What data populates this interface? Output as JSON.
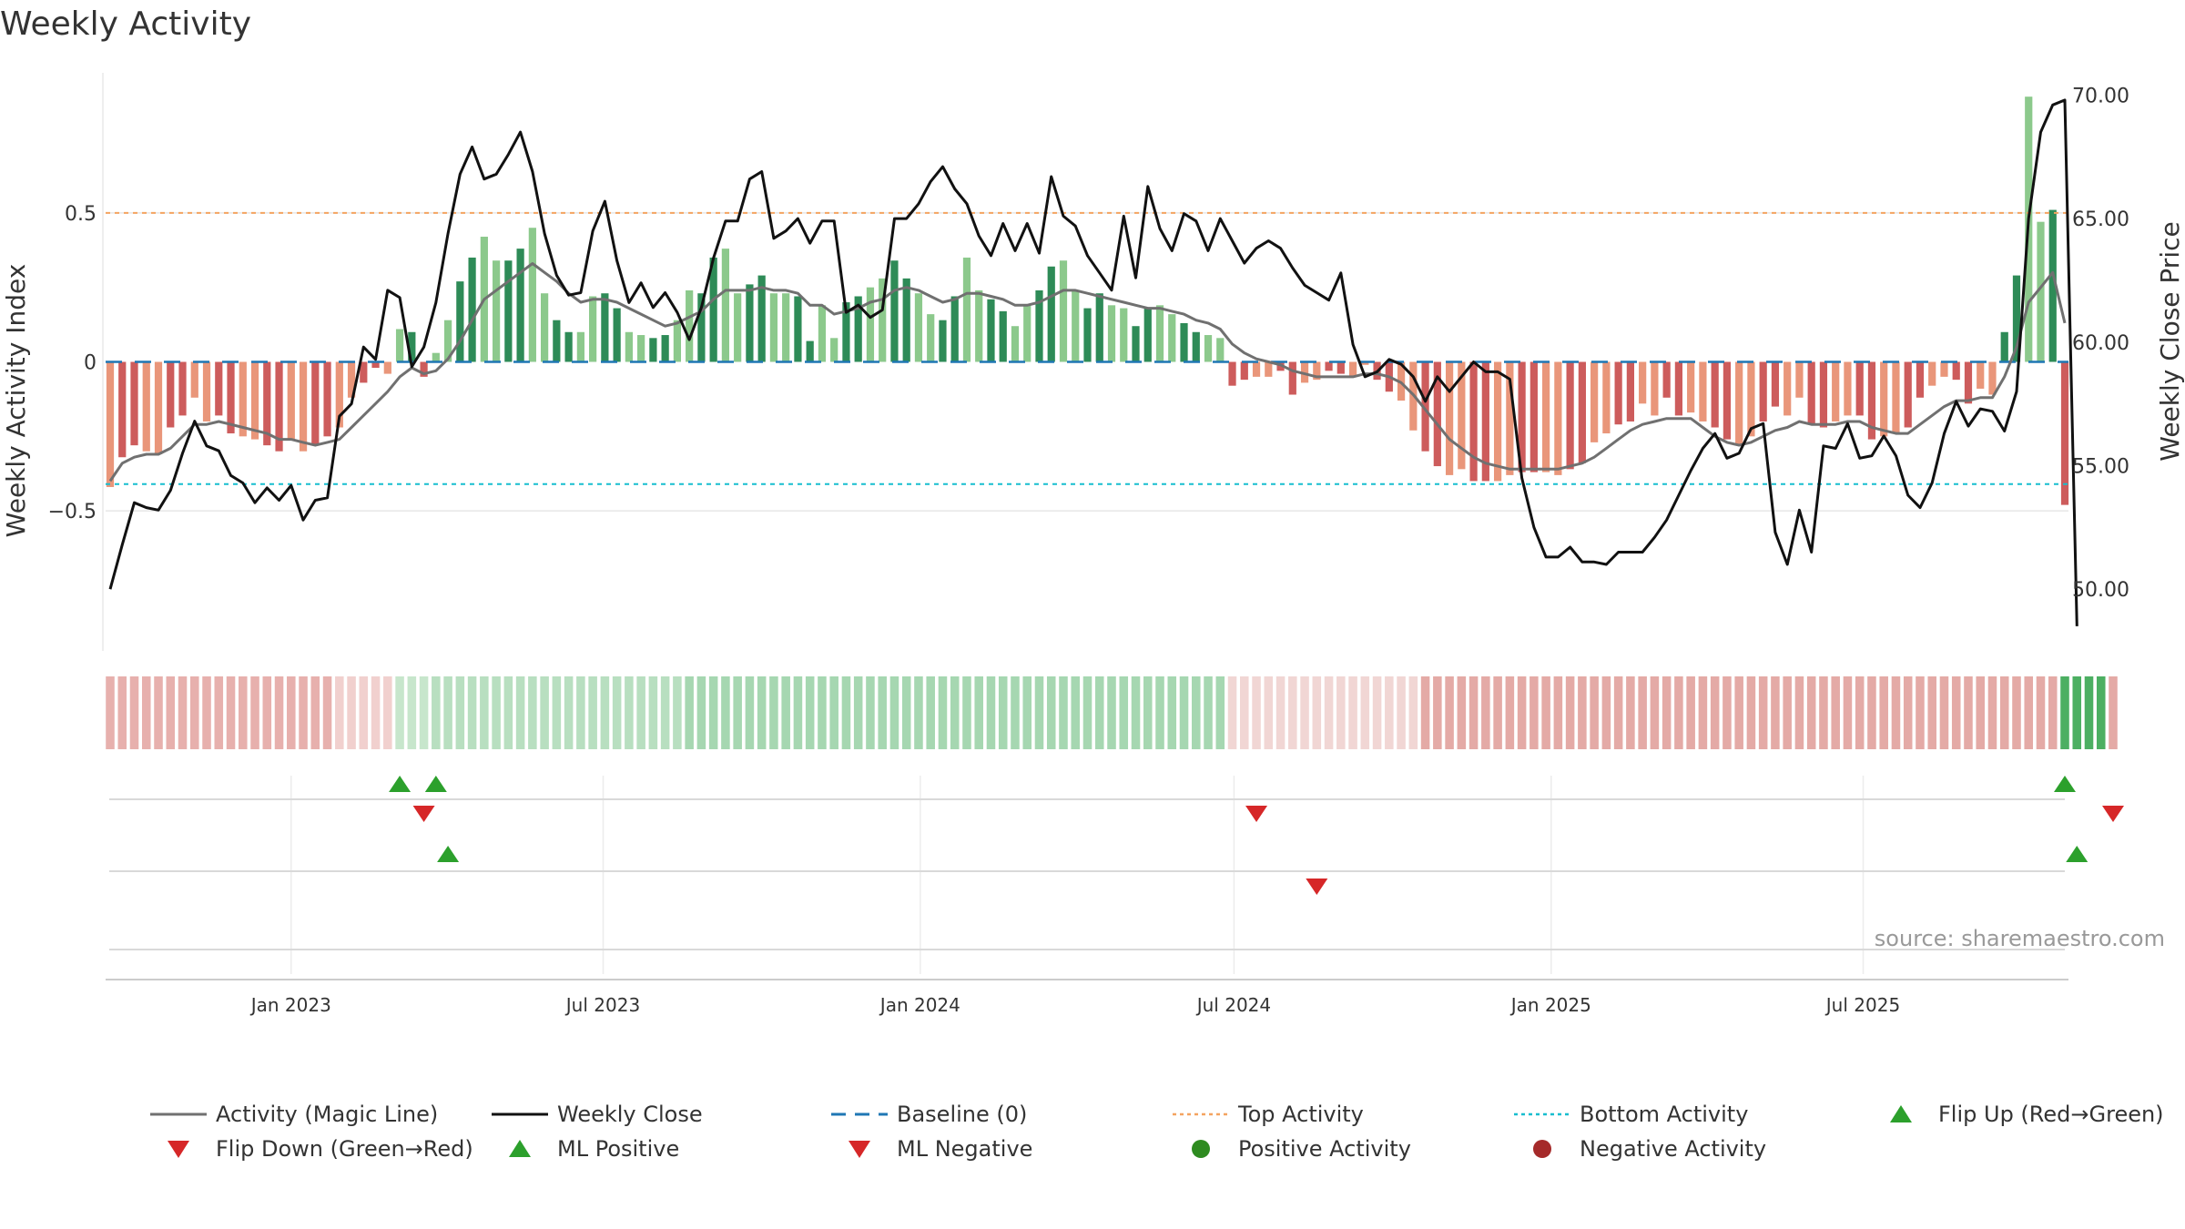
{
  "chart_data": {
    "type": "bar",
    "title": "Weekly Activity",
    "ylabel_left": "Weekly Activity Index",
    "ylabel_right": "Weekly Close Price",
    "source": "source: sharemaestro.com",
    "x_start": "2022-09-18",
    "x_step_days": 7,
    "left_axis": {
      "range": [
        -0.97,
        0.97
      ],
      "ticks": [
        -0.5,
        0,
        0.5
      ],
      "tick_labels": [
        "−0.5",
        "0",
        "0.5"
      ]
    },
    "right_axis": {
      "range": [
        47.5,
        70.9
      ],
      "ticks": [
        50,
        55,
        60,
        65,
        70
      ],
      "tick_labels": [
        "50.00",
        "55.00",
        "60.00",
        "65.00",
        "70.00"
      ]
    },
    "x_ticks": [
      {
        "date": "2023-01-01",
        "label": "Jan 2023"
      },
      {
        "date": "2023-07-01",
        "label": "Jul 2023"
      },
      {
        "date": "2024-01-01",
        "label": "Jan 2024"
      },
      {
        "date": "2024-07-01",
        "label": "Jul 2024"
      },
      {
        "date": "2025-01-01",
        "label": "Jan 2025"
      },
      {
        "date": "2025-07-01",
        "label": "Jul 2025"
      }
    ],
    "top_activity": 0.5,
    "bottom_activity": -0.41,
    "activity": [
      -0.42,
      -0.32,
      -0.28,
      -0.3,
      -0.31,
      -0.22,
      -0.18,
      -0.12,
      -0.2,
      -0.18,
      -0.24,
      -0.25,
      -0.26,
      -0.28,
      -0.3,
      -0.26,
      -0.3,
      -0.28,
      -0.25,
      -0.22,
      -0.12,
      -0.07,
      -0.02,
      -0.04,
      0.11,
      0.1,
      -0.05,
      0.03,
      0.14,
      0.27,
      0.35,
      0.42,
      0.34,
      0.34,
      0.38,
      0.45,
      0.23,
      0.14,
      0.1,
      0.1,
      0.22,
      0.23,
      0.18,
      0.1,
      0.09,
      0.08,
      0.09,
      0.14,
      0.24,
      0.23,
      0.35,
      0.38,
      0.23,
      0.26,
      0.29,
      0.23,
      0.23,
      0.22,
      0.07,
      0.19,
      0.08,
      0.2,
      0.22,
      0.25,
      0.28,
      0.34,
      0.28,
      0.23,
      0.16,
      0.14,
      0.22,
      0.35,
      0.24,
      0.21,
      0.17,
      0.12,
      0.19,
      0.24,
      0.32,
      0.34,
      0.24,
      0.18,
      0.23,
      0.19,
      0.18,
      0.12,
      0.18,
      0.19,
      0.16,
      0.13,
      0.1,
      0.09,
      0.08,
      -0.08,
      -0.06,
      -0.05,
      -0.05,
      -0.03,
      -0.11,
      -0.07,
      -0.06,
      -0.03,
      -0.04,
      -0.05,
      -0.01,
      -0.06,
      -0.1,
      -0.13,
      -0.23,
      -0.3,
      -0.35,
      -0.38,
      -0.36,
      -0.4,
      -0.4,
      -0.4,
      -0.38,
      -0.37,
      -0.37,
      -0.37,
      -0.38,
      -0.36,
      -0.34,
      -0.27,
      -0.24,
      -0.21,
      -0.2,
      -0.14,
      -0.18,
      -0.12,
      -0.18,
      -0.17,
      -0.2,
      -0.22,
      -0.26,
      -0.28,
      -0.25,
      -0.2,
      -0.15,
      -0.18,
      -0.12,
      -0.21,
      -0.22,
      -0.2,
      -0.18,
      -0.18,
      -0.26,
      -0.25,
      -0.24,
      -0.22,
      -0.12,
      -0.08,
      -0.05,
      -0.06,
      -0.14,
      -0.09,
      -0.11,
      0.1,
      0.29,
      0.89,
      0.47,
      0.51,
      -0.48
    ],
    "magic_line": [
      -0.4,
      -0.34,
      -0.32,
      -0.31,
      -0.31,
      -0.29,
      -0.25,
      -0.21,
      -0.21,
      -0.2,
      -0.21,
      -0.22,
      -0.23,
      -0.24,
      -0.26,
      -0.26,
      -0.27,
      -0.28,
      -0.27,
      -0.26,
      -0.22,
      -0.18,
      -0.14,
      -0.1,
      -0.05,
      -0.02,
      -0.04,
      -0.03,
      0.01,
      0.07,
      0.14,
      0.21,
      0.24,
      0.27,
      0.3,
      0.33,
      0.3,
      0.27,
      0.23,
      0.2,
      0.21,
      0.21,
      0.2,
      0.18,
      0.16,
      0.14,
      0.12,
      0.13,
      0.15,
      0.17,
      0.21,
      0.24,
      0.24,
      0.24,
      0.25,
      0.24,
      0.24,
      0.23,
      0.19,
      0.19,
      0.16,
      0.17,
      0.18,
      0.2,
      0.21,
      0.24,
      0.25,
      0.24,
      0.22,
      0.2,
      0.21,
      0.23,
      0.23,
      0.22,
      0.21,
      0.19,
      0.19,
      0.2,
      0.22,
      0.24,
      0.24,
      0.23,
      0.22,
      0.21,
      0.2,
      0.19,
      0.18,
      0.18,
      0.17,
      0.16,
      0.14,
      0.13,
      0.11,
      0.06,
      0.03,
      0.01,
      0.0,
      -0.01,
      -0.03,
      -0.04,
      -0.05,
      -0.05,
      -0.05,
      -0.05,
      -0.04,
      -0.04,
      -0.05,
      -0.07,
      -0.11,
      -0.16,
      -0.21,
      -0.26,
      -0.29,
      -0.32,
      -0.34,
      -0.35,
      -0.36,
      -0.36,
      -0.36,
      -0.36,
      -0.36,
      -0.35,
      -0.34,
      -0.32,
      -0.29,
      -0.26,
      -0.23,
      -0.21,
      -0.2,
      -0.19,
      -0.19,
      -0.19,
      -0.22,
      -0.25,
      -0.27,
      -0.28,
      -0.27,
      -0.25,
      -0.23,
      -0.22,
      -0.2,
      -0.21,
      -0.21,
      -0.21,
      -0.2,
      -0.2,
      -0.22,
      -0.23,
      -0.24,
      -0.24,
      -0.21,
      -0.18,
      -0.15,
      -0.13,
      -0.13,
      -0.12,
      -0.12,
      -0.05,
      0.05,
      0.2,
      0.25,
      0.3,
      0.13
    ],
    "close": [
      50.0,
      51.8,
      53.5,
      53.3,
      53.2,
      54.0,
      55.5,
      56.8,
      55.8,
      55.6,
      54.6,
      54.3,
      53.5,
      54.1,
      53.6,
      54.2,
      52.8,
      53.6,
      53.7,
      57.0,
      57.5,
      59.8,
      59.3,
      62.1,
      61.8,
      59.0,
      59.8,
      61.6,
      64.4,
      66.8,
      67.9,
      66.6,
      66.8,
      67.6,
      68.5,
      66.9,
      64.4,
      62.7,
      61.9,
      62.0,
      64.5,
      65.7,
      63.3,
      61.6,
      62.4,
      61.4,
      62.0,
      61.2,
      60.1,
      61.4,
      63.4,
      64.9,
      64.9,
      66.6,
      66.9,
      64.2,
      64.5,
      65.0,
      64.0,
      64.9,
      64.9,
      61.2,
      61.5,
      61.0,
      61.3,
      65.0,
      65.0,
      65.6,
      66.5,
      67.1,
      66.2,
      65.6,
      64.3,
      63.5,
      64.8,
      63.7,
      64.8,
      63.6,
      66.7,
      65.1,
      64.7,
      63.5,
      62.8,
      62.1,
      65.1,
      62.6,
      66.3,
      64.6,
      63.7,
      65.2,
      64.9,
      63.7,
      65.0,
      64.1,
      63.2,
      63.8,
      64.1,
      63.8,
      63.0,
      62.3,
      62.0,
      61.7,
      62.8,
      59.9,
      58.6,
      58.8,
      59.3,
      59.1,
      58.6,
      57.6,
      58.6,
      58.0,
      58.6,
      59.2,
      58.8,
      58.8,
      58.5,
      54.5,
      52.5,
      51.3,
      51.3,
      51.7,
      51.1,
      51.1,
      51.0,
      51.5,
      51.5,
      51.5,
      52.1,
      52.8,
      53.8,
      54.8,
      55.7,
      56.3,
      55.3,
      55.5,
      56.5,
      56.7,
      52.3,
      51.0,
      53.2,
      51.5,
      55.8,
      55.7,
      56.7,
      55.3,
      55.4,
      56.2,
      55.4,
      53.8,
      53.3,
      54.3,
      56.3,
      57.6,
      56.6,
      57.3,
      57.2,
      56.4,
      58.0,
      65.0,
      68.5,
      69.6,
      69.8,
      48.5
    ],
    "heat_strip": {
      "rows": [
        {
          "idx": [
            0,
            1,
            2,
            3,
            4,
            5,
            6,
            7,
            8,
            9,
            10,
            11,
            12,
            13,
            14,
            15,
            16,
            17,
            18
          ],
          "color": "#e7b0ad"
        },
        {
          "idx": [
            19,
            20,
            21,
            22,
            23
          ],
          "color": "#f1d0ce"
        },
        {
          "idx": [
            24,
            25,
            26
          ],
          "color": "#c7e6cc"
        },
        {
          "idx": [
            27,
            28,
            29,
            30,
            31,
            32,
            33,
            34,
            35,
            36,
            37,
            38,
            39,
            40,
            41,
            42,
            43,
            44,
            45,
            46,
            47
          ],
          "color": "#b8dfc0"
        },
        {
          "idx": [
            48,
            49,
            50,
            51,
            52,
            53,
            54,
            55,
            56,
            57,
            58,
            59,
            60,
            61,
            62,
            63,
            64,
            65,
            66,
            67,
            68,
            69,
            70,
            71,
            72,
            73,
            74,
            75,
            76,
            77,
            78,
            79,
            80,
            81,
            82,
            83,
            84,
            85,
            86,
            87,
            88,
            89,
            90,
            91,
            92
          ],
          "color": "#a6d7b1"
        },
        {
          "idx": [
            93,
            94,
            95,
            96,
            97,
            98,
            99,
            100,
            101,
            102,
            103,
            104,
            105,
            106,
            107,
            108
          ],
          "color": "#f1d6d4"
        },
        {
          "idx": [
            109,
            110,
            111,
            112,
            113,
            114,
            115,
            116,
            117,
            118,
            119,
            120,
            121,
            122,
            123,
            124,
            125,
            126,
            127,
            128,
            129,
            130,
            131,
            132,
            133,
            134,
            135,
            136,
            137,
            138,
            139,
            140,
            141,
            142,
            143,
            144,
            145,
            146,
            147,
            148,
            149,
            150,
            151,
            152,
            153,
            154,
            155,
            156,
            157,
            158,
            159,
            160,
            161
          ],
          "color": "#e4aaa6"
        },
        {
          "idx": [
            162,
            163,
            164,
            165
          ],
          "color": "#4caf62"
        },
        {
          "idx": [
            166
          ],
          "color": "#e4aaa6"
        }
      ]
    },
    "signal_rows": [
      {
        "name": "flip-up",
        "marker": "up",
        "color": "#2ca02c",
        "weeks": [
          24,
          27,
          162
        ]
      },
      {
        "name": "flip-down",
        "marker": "down",
        "color": "#d62728",
        "weeks": [
          26,
          95,
          166
        ]
      },
      {
        "name": "ml-positive",
        "marker": "up",
        "color": "#2ca02c",
        "weeks": [
          28,
          163
        ]
      },
      {
        "name": "ml-negative",
        "marker": "down",
        "color": "#d62728",
        "weeks": [
          100
        ]
      }
    ],
    "legend": [
      {
        "label": "Activity (Magic Line)",
        "kind": "line",
        "color": "#707070"
      },
      {
        "label": "Weekly Close",
        "kind": "line",
        "color": "#111111"
      },
      {
        "label": "Baseline (0)",
        "kind": "dash",
        "color": "#1f77b4"
      },
      {
        "label": "Top Activity",
        "kind": "dot",
        "color": "#f4a460"
      },
      {
        "label": "Bottom Activity",
        "kind": "dot",
        "color": "#17becf"
      },
      {
        "label": "Flip Up (Red→Green)",
        "kind": "tri-up",
        "color": "#2ca02c"
      },
      {
        "label": "Flip Down (Green→Red)",
        "kind": "tri-down",
        "color": "#d62728"
      },
      {
        "label": "ML Positive",
        "kind": "tri-up",
        "color": "#2ca02c"
      },
      {
        "label": "ML Negative",
        "kind": "tri-down",
        "color": "#d62728"
      },
      {
        "label": "Positive Activity",
        "kind": "circle",
        "color": "#2e8b20"
      },
      {
        "label": "Negative Activity",
        "kind": "circle",
        "color": "#a52a2a"
      }
    ],
    "colors": {
      "pos_strong": "#2e8b57",
      "pos_light": "#8cc98c",
      "neg_strong": "#cd5c5c",
      "neg_light": "#e9967a",
      "magic": "#707070",
      "close": "#111111",
      "baseline": "#1f77b4",
      "top": "#f4a460",
      "bottom": "#17becf"
    }
  }
}
